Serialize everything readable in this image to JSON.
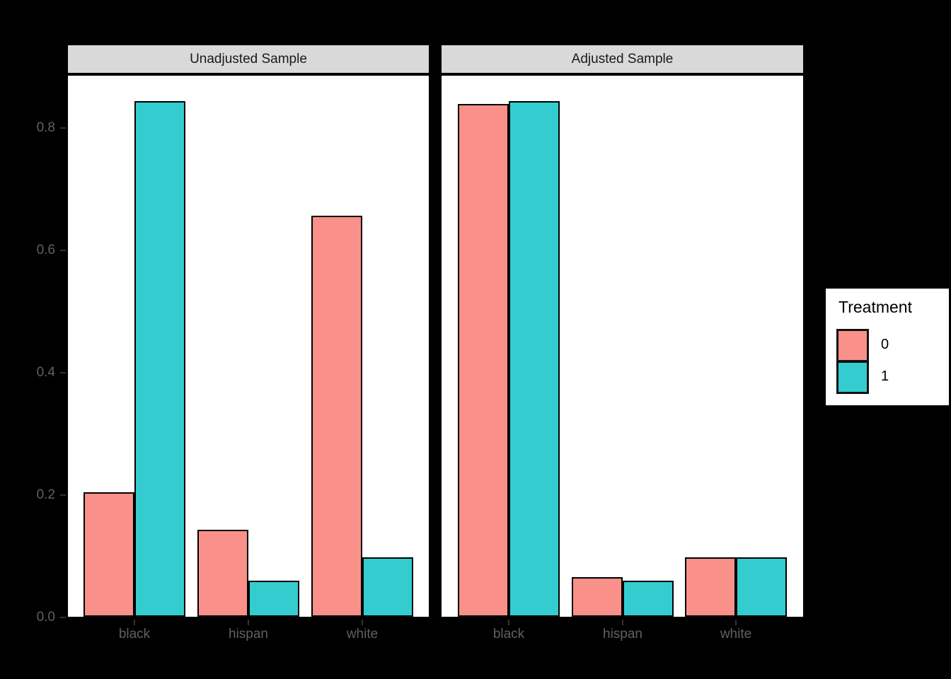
{
  "figure": {
    "background_color": "#000000",
    "panel_background": "#ffffff",
    "strip_background": "#d9d9d9",
    "axis_text_color": "#606060",
    "tick_color": "#333333",
    "bar_outline_color": "#000000"
  },
  "legend": {
    "title": "Treatment",
    "entries": [
      {
        "label": "0",
        "color": "#F99089"
      },
      {
        "label": "1",
        "color": "#35CCD0"
      }
    ]
  },
  "chart_data": {
    "type": "bar",
    "title": "",
    "xlabel": "",
    "ylabel": "",
    "categories": [
      "black",
      "hispan",
      "white"
    ],
    "facets": [
      {
        "title": "Unadjusted Sample",
        "series": [
          {
            "name": "0",
            "color": "#F99089",
            "values": [
              0.203,
              0.142,
              0.655
            ]
          },
          {
            "name": "1",
            "color": "#35CCD0",
            "values": [
              0.843,
              0.059,
              0.097
            ]
          }
        ]
      },
      {
        "title": "Adjusted Sample",
        "series": [
          {
            "name": "0",
            "color": "#F99089",
            "values": [
              0.838,
              0.065,
              0.097
            ]
          },
          {
            "name": "1",
            "color": "#35CCD0",
            "values": [
              0.843,
              0.059,
              0.097
            ]
          }
        ]
      }
    ],
    "y_ticks": [
      0.0,
      0.2,
      0.4,
      0.6,
      0.8
    ],
    "y_tick_labels": [
      "0.0",
      "0.2",
      "0.4",
      "0.6",
      "0.8"
    ],
    "ylim": [
      0,
      0.89
    ],
    "grid": false,
    "legend_title": "Treatment",
    "legend_position": "right"
  }
}
